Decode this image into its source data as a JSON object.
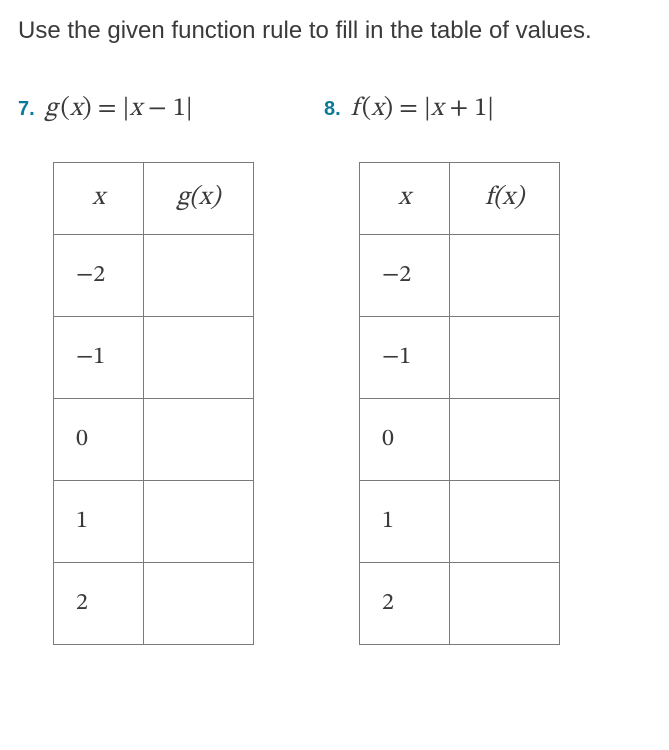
{
  "instruction": "Use the given function rule to fill in the table of values.",
  "problems": [
    {
      "number": "7.",
      "func_lhs": "g",
      "func_var": "x",
      "func_rhs_inside": "x − 1",
      "table_header_fx": "g(x)",
      "x_values": [
        "−2",
        "−1",
        "0",
        "1",
        "2"
      ],
      "fx_values": [
        "",
        "",
        "",
        "",
        ""
      ]
    },
    {
      "number": "8.",
      "func_lhs": "f",
      "func_var": "x",
      "func_rhs_inside": "x + 1",
      "table_header_fx": "f(x)",
      "x_values": [
        "−2",
        "−1",
        "0",
        "1",
        "2"
      ],
      "fx_values": [
        "",
        "",
        "",
        "",
        ""
      ]
    }
  ],
  "style": {
    "accent_color": "#0b7a99",
    "text_color": "#3a3a3a",
    "border_color": "#7a7a7a",
    "background_color": "#ffffff",
    "body_fontsize": 24,
    "math_fontsize": 26,
    "pnum_fontsize": 20,
    "table_row_height": 82,
    "table_header_height": 72,
    "col_x_width": 90,
    "col_fx_width": 110
  }
}
